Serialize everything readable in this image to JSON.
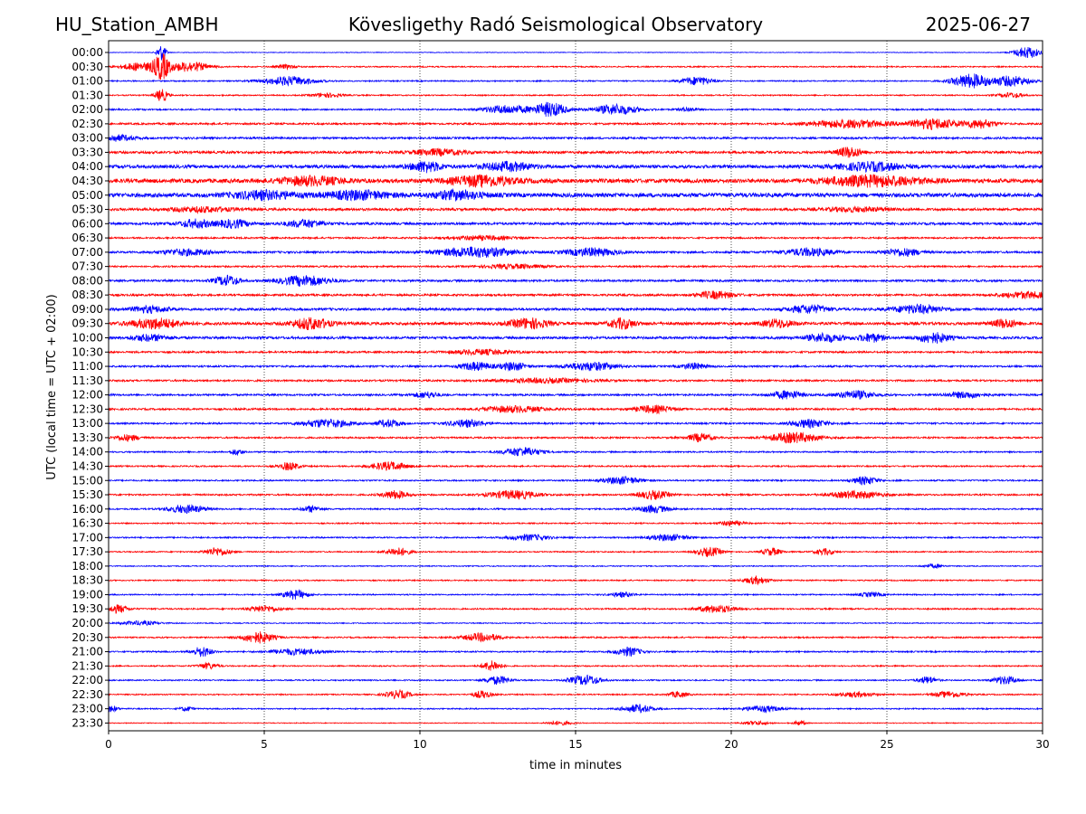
{
  "header": {
    "station": "HU_Station_AMBH",
    "observatory": "Kövesligethy Radó Seismological Observatory",
    "date": "2025-06-27"
  },
  "chart_data": {
    "type": "line",
    "title": "Kövesligethy Radó Seismological Observatory",
    "xlabel": "time in minutes",
    "ylabel": "UTC (local time = UTC + 02:00)",
    "xlim": [
      0,
      30
    ],
    "xticks": [
      0,
      5,
      10,
      15,
      20,
      25,
      30
    ],
    "grid": "vertical dotted at x ticks",
    "colors": {
      "even_trace": "#0000ff",
      "odd_trace": "#ff0000"
    },
    "rows": [
      {
        "label": "00:00",
        "base": 0.15,
        "bursts": [
          {
            "t": 1.7,
            "a": 4,
            "w": 0.15
          },
          {
            "t": 29.5,
            "a": 3,
            "w": 0.4
          }
        ]
      },
      {
        "label": "00:30",
        "base": 0.3,
        "bursts": [
          {
            "t": 1.0,
            "a": 2,
            "w": 0.6
          },
          {
            "t": 1.7,
            "a": 6,
            "w": 0.25
          },
          {
            "t": 2.6,
            "a": 2.5,
            "w": 0.6
          },
          {
            "t": 5.7,
            "a": 1,
            "w": 0.3
          }
        ]
      },
      {
        "label": "01:00",
        "base": 0.3,
        "bursts": [
          {
            "t": 5.8,
            "a": 2.2,
            "w": 0.8
          },
          {
            "t": 18.9,
            "a": 2,
            "w": 0.5
          },
          {
            "t": 27.7,
            "a": 3.5,
            "w": 0.6
          },
          {
            "t": 29,
            "a": 2.5,
            "w": 0.6
          }
        ]
      },
      {
        "label": "01:30",
        "base": 0.3,
        "bursts": [
          {
            "t": 1.7,
            "a": 3,
            "w": 0.2
          },
          {
            "t": 7,
            "a": 1,
            "w": 0.5
          },
          {
            "t": 29,
            "a": 1.2,
            "w": 0.4
          }
        ]
      },
      {
        "label": "02:00",
        "base": 0.35,
        "bursts": [
          {
            "t": 12.8,
            "a": 2,
            "w": 0.8
          },
          {
            "t": 14.2,
            "a": 3.5,
            "w": 0.5
          },
          {
            "t": 16.3,
            "a": 2.5,
            "w": 0.7
          },
          {
            "t": 18.6,
            "a": 1,
            "w": 0.3
          }
        ]
      },
      {
        "label": "02:30",
        "base": 0.45,
        "bursts": [
          {
            "t": 23.8,
            "a": 2,
            "w": 1.2
          },
          {
            "t": 26.5,
            "a": 2.5,
            "w": 0.8
          },
          {
            "t": 28,
            "a": 2,
            "w": 0.5
          }
        ]
      },
      {
        "label": "03:00",
        "base": 0.5,
        "bursts": [
          {
            "t": 0.2,
            "a": 1.5,
            "w": 0.6
          }
        ]
      },
      {
        "label": "03:30",
        "base": 0.6,
        "bursts": [
          {
            "t": 10.6,
            "a": 1.5,
            "w": 0.8
          },
          {
            "t": 23.8,
            "a": 2.5,
            "w": 0.4
          }
        ]
      },
      {
        "label": "04:00",
        "base": 0.8,
        "bursts": [
          {
            "t": 10.2,
            "a": 2.5,
            "w": 0.5
          },
          {
            "t": 12.8,
            "a": 2,
            "w": 0.8
          },
          {
            "t": 24.5,
            "a": 2,
            "w": 1
          }
        ]
      },
      {
        "label": "04:30",
        "base": 1.0,
        "bursts": [
          {
            "t": 6.5,
            "a": 2,
            "w": 1
          },
          {
            "t": 12,
            "a": 2.5,
            "w": 1
          },
          {
            "t": 24.5,
            "a": 2.5,
            "w": 1.5
          }
        ]
      },
      {
        "label": "05:00",
        "base": 1.0,
        "bursts": [
          {
            "t": 5,
            "a": 2,
            "w": 1
          },
          {
            "t": 8,
            "a": 2,
            "w": 1
          },
          {
            "t": 11.2,
            "a": 2,
            "w": 0.8
          }
        ]
      },
      {
        "label": "05:30",
        "base": 0.6,
        "bursts": [
          {
            "t": 3,
            "a": 1.2,
            "w": 1
          },
          {
            "t": 24,
            "a": 1,
            "w": 1
          }
        ]
      },
      {
        "label": "06:00",
        "base": 0.6,
        "bursts": [
          {
            "t": 2.8,
            "a": 2,
            "w": 0.5
          },
          {
            "t": 4,
            "a": 2,
            "w": 0.5
          },
          {
            "t": 6.3,
            "a": 1.8,
            "w": 0.6
          }
        ]
      },
      {
        "label": "06:30",
        "base": 0.4,
        "bursts": [
          {
            "t": 12,
            "a": 1,
            "w": 1
          }
        ]
      },
      {
        "label": "07:00",
        "base": 0.5,
        "bursts": [
          {
            "t": 2.5,
            "a": 1.5,
            "w": 0.8
          },
          {
            "t": 11.8,
            "a": 2.5,
            "w": 1.2
          },
          {
            "t": 15.5,
            "a": 2,
            "w": 0.8
          },
          {
            "t": 22.5,
            "a": 1.8,
            "w": 0.8
          },
          {
            "t": 25.5,
            "a": 1.8,
            "w": 0.6
          }
        ]
      },
      {
        "label": "07:30",
        "base": 0.4,
        "bursts": [
          {
            "t": 13,
            "a": 1,
            "w": 1
          }
        ]
      },
      {
        "label": "08:00",
        "base": 0.5,
        "bursts": [
          {
            "t": 3.8,
            "a": 2.5,
            "w": 0.4
          },
          {
            "t": 6.3,
            "a": 2.5,
            "w": 0.8
          }
        ]
      },
      {
        "label": "08:30",
        "base": 0.5,
        "bursts": [
          {
            "t": 19.5,
            "a": 1.8,
            "w": 0.6
          },
          {
            "t": 29.5,
            "a": 1.5,
            "w": 0.8
          }
        ]
      },
      {
        "label": "09:00",
        "base": 0.6,
        "bursts": [
          {
            "t": 1.3,
            "a": 1.5,
            "w": 0.6
          },
          {
            "t": 22.5,
            "a": 2,
            "w": 0.6
          },
          {
            "t": 26,
            "a": 2,
            "w": 0.8
          }
        ]
      },
      {
        "label": "09:30",
        "base": 0.7,
        "bursts": [
          {
            "t": 1.5,
            "a": 2.5,
            "w": 0.8
          },
          {
            "t": 6.5,
            "a": 2.8,
            "w": 0.6
          },
          {
            "t": 13.5,
            "a": 2.5,
            "w": 0.6
          },
          {
            "t": 16.5,
            "a": 2.5,
            "w": 0.4
          },
          {
            "t": 21.5,
            "a": 2,
            "w": 0.5
          },
          {
            "t": 28.8,
            "a": 2,
            "w": 0.4
          }
        ]
      },
      {
        "label": "10:00",
        "base": 0.6,
        "bursts": [
          {
            "t": 1.3,
            "a": 1.5,
            "w": 0.6
          },
          {
            "t": 23,
            "a": 2,
            "w": 0.6
          },
          {
            "t": 24.5,
            "a": 2,
            "w": 0.4
          },
          {
            "t": 26.5,
            "a": 2.5,
            "w": 0.5
          }
        ]
      },
      {
        "label": "10:30",
        "base": 0.45,
        "bursts": [
          {
            "t": 12,
            "a": 1.2,
            "w": 1
          }
        ]
      },
      {
        "label": "11:00",
        "base": 0.45,
        "bursts": [
          {
            "t": 11.8,
            "a": 2,
            "w": 0.5
          },
          {
            "t": 13,
            "a": 2,
            "w": 0.4
          },
          {
            "t": 15.5,
            "a": 2,
            "w": 0.8
          },
          {
            "t": 18.8,
            "a": 1.5,
            "w": 0.4
          }
        ]
      },
      {
        "label": "11:30",
        "base": 0.45,
        "bursts": [
          {
            "t": 14,
            "a": 1,
            "w": 1.5
          }
        ]
      },
      {
        "label": "12:00",
        "base": 0.45,
        "bursts": [
          {
            "t": 10.2,
            "a": 1.5,
            "w": 0.4
          },
          {
            "t": 21.8,
            "a": 2,
            "w": 0.5
          },
          {
            "t": 24,
            "a": 2,
            "w": 0.6
          },
          {
            "t": 27.5,
            "a": 1.5,
            "w": 0.6
          }
        ]
      },
      {
        "label": "12:30",
        "base": 0.45,
        "bursts": [
          {
            "t": 13,
            "a": 1.5,
            "w": 1
          },
          {
            "t": 17.5,
            "a": 1.8,
            "w": 0.6
          }
        ]
      },
      {
        "label": "13:00",
        "base": 0.4,
        "bursts": [
          {
            "t": 7,
            "a": 2,
            "w": 0.8
          },
          {
            "t": 9,
            "a": 1.8,
            "w": 0.4
          },
          {
            "t": 11.5,
            "a": 1.8,
            "w": 0.6
          },
          {
            "t": 22.5,
            "a": 2,
            "w": 0.6
          }
        ]
      },
      {
        "label": "13:30",
        "base": 0.4,
        "bursts": [
          {
            "t": 0.6,
            "a": 1.5,
            "w": 0.4
          },
          {
            "t": 19,
            "a": 2,
            "w": 0.4
          },
          {
            "t": 22,
            "a": 2.5,
            "w": 0.8
          }
        ]
      },
      {
        "label": "14:00",
        "base": 0.35,
        "bursts": [
          {
            "t": 4.1,
            "a": 1.5,
            "w": 0.2
          },
          {
            "t": 13.3,
            "a": 2.2,
            "w": 0.6
          }
        ]
      },
      {
        "label": "14:30",
        "base": 0.35,
        "bursts": [
          {
            "t": 5.8,
            "a": 2,
            "w": 0.3
          },
          {
            "t": 9,
            "a": 2,
            "w": 0.6
          }
        ]
      },
      {
        "label": "15:00",
        "base": 0.35,
        "bursts": [
          {
            "t": 16.5,
            "a": 1.8,
            "w": 0.6
          },
          {
            "t": 24.3,
            "a": 2,
            "w": 0.4
          }
        ]
      },
      {
        "label": "15:30",
        "base": 0.4,
        "bursts": [
          {
            "t": 9.2,
            "a": 2,
            "w": 0.4
          },
          {
            "t": 13,
            "a": 2,
            "w": 0.8
          },
          {
            "t": 17.5,
            "a": 2,
            "w": 0.5
          },
          {
            "t": 24,
            "a": 1.8,
            "w": 0.8
          }
        ]
      },
      {
        "label": "16:00",
        "base": 0.35,
        "bursts": [
          {
            "t": 2.5,
            "a": 2,
            "w": 0.6
          },
          {
            "t": 6.5,
            "a": 1.5,
            "w": 0.3
          },
          {
            "t": 17.5,
            "a": 1.8,
            "w": 0.5
          }
        ]
      },
      {
        "label": "16:30",
        "base": 0.3,
        "bursts": [
          {
            "t": 20,
            "a": 1.2,
            "w": 0.4
          }
        ]
      },
      {
        "label": "17:00",
        "base": 0.35,
        "bursts": [
          {
            "t": 13.5,
            "a": 1.5,
            "w": 0.6
          },
          {
            "t": 18,
            "a": 1.5,
            "w": 0.6
          }
        ]
      },
      {
        "label": "17:30",
        "base": 0.3,
        "bursts": [
          {
            "t": 3.5,
            "a": 2,
            "w": 0.4
          },
          {
            "t": 9.3,
            "a": 2,
            "w": 0.4
          },
          {
            "t": 19.3,
            "a": 2.2,
            "w": 0.4
          },
          {
            "t": 21.3,
            "a": 1.8,
            "w": 0.3
          },
          {
            "t": 23,
            "a": 1.5,
            "w": 0.3
          }
        ]
      },
      {
        "label": "18:00",
        "base": 0.25,
        "bursts": [
          {
            "t": 26.5,
            "a": 1,
            "w": 0.3
          }
        ]
      },
      {
        "label": "18:30",
        "base": 0.3,
        "bursts": [
          {
            "t": 20.8,
            "a": 1.8,
            "w": 0.4
          }
        ]
      },
      {
        "label": "19:00",
        "base": 0.3,
        "bursts": [
          {
            "t": 6,
            "a": 2.2,
            "w": 0.4
          },
          {
            "t": 16.5,
            "a": 1.2,
            "w": 0.4
          },
          {
            "t": 24.5,
            "a": 1,
            "w": 0.4
          }
        ]
      },
      {
        "label": "19:30",
        "base": 0.35,
        "bursts": [
          {
            "t": 0.3,
            "a": 2,
            "w": 0.3
          },
          {
            "t": 5,
            "a": 1.5,
            "w": 0.5
          },
          {
            "t": 19.5,
            "a": 1.8,
            "w": 0.6
          }
        ]
      },
      {
        "label": "20:00",
        "base": 0.25,
        "bursts": [
          {
            "t": 1,
            "a": 1,
            "w": 0.6
          }
        ]
      },
      {
        "label": "20:30",
        "base": 0.35,
        "bursts": [
          {
            "t": 4.8,
            "a": 2.8,
            "w": 0.5
          },
          {
            "t": 12,
            "a": 2,
            "w": 0.6
          }
        ]
      },
      {
        "label": "21:00",
        "base": 0.35,
        "bursts": [
          {
            "t": 3,
            "a": 2.5,
            "w": 0.3
          },
          {
            "t": 6,
            "a": 1.5,
            "w": 0.8
          },
          {
            "t": 16.7,
            "a": 2.2,
            "w": 0.4
          }
        ]
      },
      {
        "label": "21:30",
        "base": 0.3,
        "bursts": [
          {
            "t": 3.2,
            "a": 1.5,
            "w": 0.3
          },
          {
            "t": 12.3,
            "a": 2.5,
            "w": 0.3
          }
        ]
      },
      {
        "label": "22:00",
        "base": 0.3,
        "bursts": [
          {
            "t": 12.5,
            "a": 2,
            "w": 0.4
          },
          {
            "t": 15.3,
            "a": 2.5,
            "w": 0.5
          },
          {
            "t": 26.3,
            "a": 1.8,
            "w": 0.3
          },
          {
            "t": 28.8,
            "a": 2,
            "w": 0.4
          }
        ]
      },
      {
        "label": "22:30",
        "base": 0.3,
        "bursts": [
          {
            "t": 9.3,
            "a": 2,
            "w": 0.4
          },
          {
            "t": 12,
            "a": 1.8,
            "w": 0.3
          },
          {
            "t": 18.3,
            "a": 1.5,
            "w": 0.3
          },
          {
            "t": 24,
            "a": 1.2,
            "w": 0.6
          },
          {
            "t": 27,
            "a": 1.5,
            "w": 0.5
          }
        ]
      },
      {
        "label": "23:00",
        "base": 0.3,
        "bursts": [
          {
            "t": 0.1,
            "a": 1.5,
            "w": 0.2
          },
          {
            "t": 2.5,
            "a": 1.2,
            "w": 0.2
          },
          {
            "t": 17,
            "a": 2,
            "w": 0.5
          },
          {
            "t": 21,
            "a": 1.5,
            "w": 0.6
          }
        ]
      },
      {
        "label": "23:30",
        "base": 0.2,
        "bursts": [
          {
            "t": 14.5,
            "a": 1,
            "w": 0.4
          },
          {
            "t": 20.8,
            "a": 1,
            "w": 0.4
          },
          {
            "t": 22.2,
            "a": 1.2,
            "w": 0.2
          }
        ]
      }
    ]
  }
}
